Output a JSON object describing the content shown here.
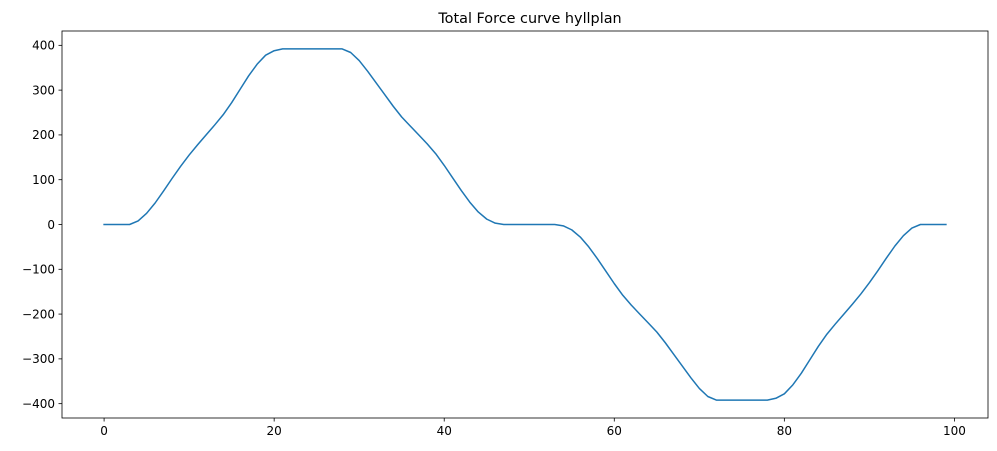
{
  "chart_data": {
    "type": "line",
    "title": "Total Force curve hyllplan",
    "xlabel": "",
    "ylabel": "",
    "xlim": [
      -4.95,
      103.95
    ],
    "ylim": [
      -432,
      432
    ],
    "x_ticks": [
      0,
      20,
      40,
      60,
      80,
      100
    ],
    "y_ticks": [
      -400,
      -300,
      -200,
      -100,
      0,
      100,
      200,
      300,
      400
    ],
    "x_tick_labels": [
      "0",
      "20",
      "40",
      "60",
      "80",
      "100"
    ],
    "y_tick_labels": [
      "−400",
      "−300",
      "−200",
      "−100",
      "0",
      "100",
      "200",
      "300",
      "400"
    ],
    "grid": false,
    "series": [
      {
        "color": "#1f77b4",
        "x": [
          0,
          1,
          2,
          3,
          4,
          5,
          6,
          7,
          8,
          9,
          10,
          11,
          12,
          13,
          14,
          15,
          16,
          17,
          18,
          19,
          20,
          21,
          22,
          23,
          24,
          25,
          26,
          27,
          28,
          29,
          30,
          31,
          32,
          33,
          34,
          35,
          36,
          37,
          38,
          39,
          40,
          41,
          42,
          43,
          44,
          45,
          46,
          47,
          48,
          49,
          50,
          51,
          52,
          53,
          54,
          55,
          56,
          57,
          58,
          59,
          60,
          61,
          62,
          63,
          64,
          65,
          66,
          67,
          68,
          69,
          70,
          71,
          72,
          73,
          74,
          75,
          76,
          77,
          78,
          79,
          80,
          81,
          82,
          83,
          84,
          85,
          86,
          87,
          88,
          89,
          90,
          91,
          92,
          93,
          94,
          95,
          96,
          97,
          98,
          99
        ],
        "values": [
          0,
          0,
          0,
          0,
          8,
          25,
          48,
          75,
          103,
          130,
          155,
          178,
          200,
          222,
          245,
          272,
          302,
          332,
          358,
          378,
          388,
          392,
          392,
          392,
          392,
          392,
          392,
          392,
          392,
          384,
          366,
          342,
          316,
          290,
          264,
          240,
          220,
          200,
          180,
          158,
          132,
          104,
          76,
          50,
          28,
          12,
          3,
          0,
          0,
          0,
          0,
          0,
          0,
          0,
          -3,
          -12,
          -28,
          -50,
          -76,
          -104,
          -132,
          -158,
          -180,
          -200,
          -220,
          -240,
          -264,
          -290,
          -316,
          -342,
          -366,
          -384,
          -392,
          -392,
          -392,
          -392,
          -392,
          -392,
          -392,
          -388,
          -378,
          -358,
          -332,
          -302,
          -272,
          -245,
          -222,
          -200,
          -178,
          -155,
          -130,
          -103,
          -75,
          -48,
          -25,
          -8,
          0,
          0,
          0,
          0
        ]
      }
    ]
  }
}
